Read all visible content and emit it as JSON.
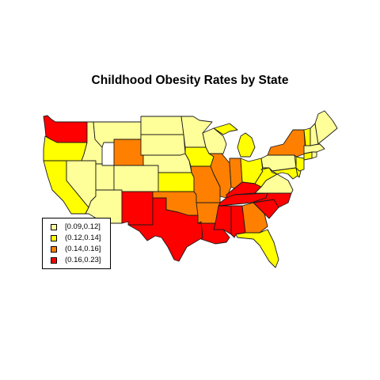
{
  "title": "Childhood Obesity Rates by State",
  "colors": {
    "low": "#FFFF99",
    "mid_low": "#FFFF00",
    "mid_high": "#FF8000",
    "high": "#FF0000"
  },
  "legend": [
    {
      "label": "[0.09,0.12]",
      "color_key": "low"
    },
    {
      "label": "(0.12,0.14]",
      "color_key": "mid_low"
    },
    {
      "label": "(0.14,0.16]",
      "color_key": "mid_high"
    },
    {
      "label": "(0.16,0.23]",
      "color_key": "high"
    }
  ],
  "states": {
    "WA": "high",
    "OR": "mid_low",
    "CA": "mid_low",
    "NV": "low",
    "ID": "low",
    "MT": "low",
    "WY": "mid_high",
    "UT": "low",
    "AZ": "low",
    "CO": "low",
    "NM": "high",
    "ND": "low",
    "SD": "low",
    "NE": "low",
    "KS": "mid_low",
    "OK": "mid_high",
    "TX": "high",
    "MN": "low",
    "IA": "mid_low",
    "MO": "mid_high",
    "AR": "mid_high",
    "LA": "high",
    "WI": "low",
    "IL": "mid_high",
    "MI": "mid_low",
    "IN": "mid_high",
    "OH": "mid_low",
    "KY": "high",
    "TN": "high",
    "MS": "high",
    "AL": "high",
    "GA": "mid_high",
    "FL": "mid_low",
    "SC": "high",
    "NC": "high",
    "VA": "low",
    "WV": "mid_low",
    "PA": "low",
    "NY": "mid_high",
    "VT": "mid_low",
    "NH": "low",
    "ME": "low",
    "MA": "low",
    "RI": "low",
    "CT": "mid_low",
    "NJ": "mid_low",
    "DE": "mid_low",
    "MD": "mid_low"
  }
}
